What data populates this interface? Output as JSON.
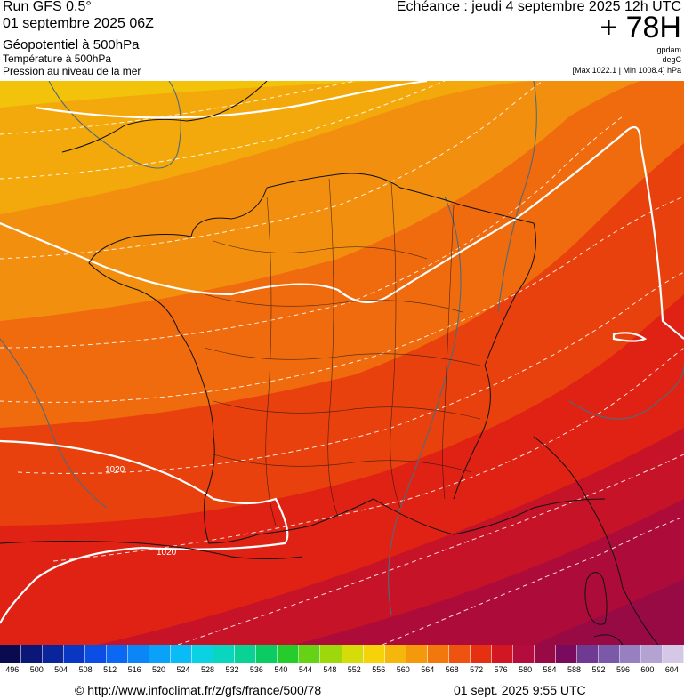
{
  "header": {
    "run_title": "Run GFS 0.5°",
    "run_date": "01 septembre 2025 06Z",
    "param_geopotential": "Géopotentiel à 500hPa",
    "param_temperature": "Température à 500hPa",
    "param_pressure": "Pression au niveau de la mer",
    "echeance": "Echéance : jeudi 4 septembre 2025 12h UTC",
    "lead_time": "+ 78H",
    "unit_geopotential": "gpdam",
    "unit_temperature": "degC",
    "pressure_range": "[Max 1022.1 | Min 1008.4] hPa"
  },
  "map": {
    "isobar_labels": [
      "1020",
      "1020"
    ],
    "colors": {
      "band_0": "#f2c30a",
      "band_1": "#f3a90c",
      "band_2": "#f38f0e",
      "band_3": "#f06a0e",
      "band_4": "#e8410e",
      "band_5": "#df2214",
      "band_6": "#c61328",
      "band_7": "#ad0b3a",
      "band_8": "#980a44",
      "border": "#111111",
      "isobar": "#ffffff",
      "isotherm": "#ffffff",
      "secondary_contour": "#4d6b7a"
    }
  },
  "colorbar": {
    "labels": [
      "496",
      "500",
      "504",
      "508",
      "512",
      "516",
      "520",
      "524",
      "528",
      "532",
      "536",
      "540",
      "544",
      "548",
      "552",
      "556",
      "560",
      "564",
      "568",
      "572",
      "576",
      "580",
      "584",
      "588",
      "592",
      "596",
      "600",
      "604"
    ],
    "colors": [
      "#0a0a50",
      "#0a1678",
      "#0a249c",
      "#0a36c4",
      "#0a4ee6",
      "#0a68f2",
      "#0a86f6",
      "#0aa2f8",
      "#0abcf6",
      "#0ad2e2",
      "#0ad6c0",
      "#0ad294",
      "#0acc62",
      "#26cc2c",
      "#66d214",
      "#9ed80c",
      "#d6dc0a",
      "#f6d20a",
      "#f5b70b",
      "#f4980c",
      "#f2780e",
      "#ee5410",
      "#e63012",
      "#d21624",
      "#b40c3c",
      "#980a44",
      "#7a0a5e",
      "#6e3a92",
      "#7a5aa8",
      "#9680c0",
      "#b4a2d2",
      "#d4c8e6"
    ]
  },
  "footer": {
    "url": "© http://www.infoclimat.fr/z/gfs/france/500/78",
    "timestamp": "01 sept. 2025  9:55 UTC"
  }
}
